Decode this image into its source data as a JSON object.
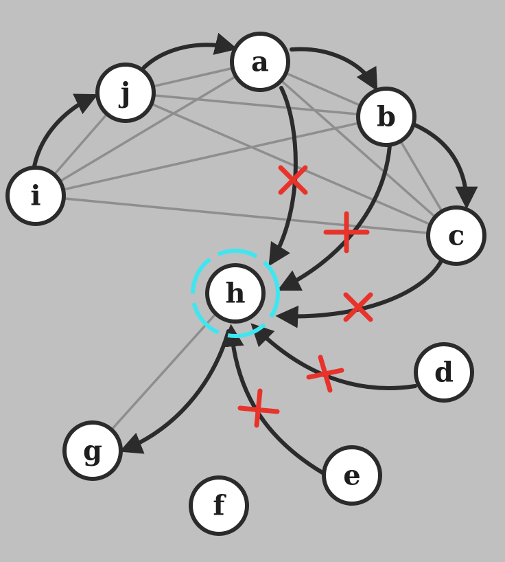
{
  "graph": {
    "colors": {
      "background": "#c0c0c0",
      "node_fill": "#ffffff",
      "node_stroke": "#2b2b2b",
      "arc": "#2b2b2b",
      "light_edge": "#8e8e8e",
      "cut_mark": "#e8332a",
      "highlight_ring": "#3fe6f0"
    },
    "nodes": [
      {
        "id": "a",
        "label": "a"
      },
      {
        "id": "b",
        "label": "b"
      },
      {
        "id": "c",
        "label": "c"
      },
      {
        "id": "d",
        "label": "d"
      },
      {
        "id": "e",
        "label": "e"
      },
      {
        "id": "f",
        "label": "f"
      },
      {
        "id": "g",
        "label": "g"
      },
      {
        "id": "h",
        "label": "h"
      },
      {
        "id": "i",
        "label": "i"
      },
      {
        "id": "j",
        "label": "j"
      }
    ],
    "highlighted_node": "h",
    "directed_edges": [
      {
        "from": "i",
        "to": "j",
        "cut": false
      },
      {
        "from": "j",
        "to": "a",
        "cut": false
      },
      {
        "from": "a",
        "to": "b",
        "cut": false
      },
      {
        "from": "b",
        "to": "c",
        "cut": false
      },
      {
        "from": "a",
        "to": "h",
        "cut": true
      },
      {
        "from": "b",
        "to": "h",
        "cut": true
      },
      {
        "from": "c",
        "to": "h",
        "cut": true
      },
      {
        "from": "d",
        "to": "h",
        "cut": true
      },
      {
        "from": "e",
        "to": "h",
        "cut": true
      },
      {
        "from": "h",
        "to": "g",
        "cut": false
      },
      {
        "from": "g",
        "to": "h",
        "cut": false
      }
    ],
    "undirected_edges": [
      {
        "from": "i",
        "to": "j"
      },
      {
        "from": "i",
        "to": "a"
      },
      {
        "from": "i",
        "to": "b"
      },
      {
        "from": "i",
        "to": "c"
      },
      {
        "from": "j",
        "to": "a"
      },
      {
        "from": "j",
        "to": "b"
      },
      {
        "from": "j",
        "to": "c"
      },
      {
        "from": "a",
        "to": "b"
      },
      {
        "from": "a",
        "to": "c"
      },
      {
        "from": "b",
        "to": "c"
      },
      {
        "from": "g",
        "to": "h"
      }
    ]
  }
}
